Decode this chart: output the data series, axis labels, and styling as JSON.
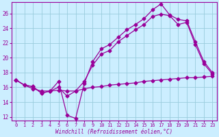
{
  "xlabel": "Windchill (Refroidissement éolien,°C)",
  "bg_color": "#cceeff",
  "line_color": "#990099",
  "grid_color": "#99ccdd",
  "xlim": [
    -0.5,
    23.5
  ],
  "ylim": [
    11.5,
    27.5
  ],
  "yticks": [
    12,
    14,
    16,
    18,
    20,
    22,
    24,
    26
  ],
  "xticks": [
    0,
    1,
    2,
    3,
    4,
    5,
    6,
    7,
    8,
    9,
    10,
    11,
    12,
    13,
    14,
    15,
    16,
    17,
    18,
    19,
    20,
    21,
    22,
    23
  ],
  "y_top": [
    17.0,
    16.3,
    16.1,
    15.2,
    15.5,
    16.8,
    12.2,
    11.8,
    16.5,
    19.5,
    21.2,
    21.8,
    22.8,
    23.8,
    24.5,
    25.3,
    26.5,
    27.3,
    25.8,
    25.2,
    25.0,
    22.2,
    19.5,
    18.0
  ],
  "y_mid": [
    17.0,
    16.3,
    16.1,
    15.2,
    15.5,
    16.0,
    14.8,
    15.5,
    16.8,
    19.0,
    20.5,
    21.0,
    22.2,
    23.0,
    23.8,
    24.5,
    25.6,
    25.9,
    25.7,
    24.5,
    24.8,
    21.8,
    19.2,
    17.8
  ],
  "y_flat": [
    17.0,
    16.3,
    15.8,
    15.5,
    15.5,
    15.6,
    15.5,
    15.5,
    15.8,
    16.0,
    16.1,
    16.3,
    16.4,
    16.5,
    16.6,
    16.8,
    16.9,
    17.0,
    17.1,
    17.2,
    17.3,
    17.3,
    17.4,
    17.5
  ]
}
